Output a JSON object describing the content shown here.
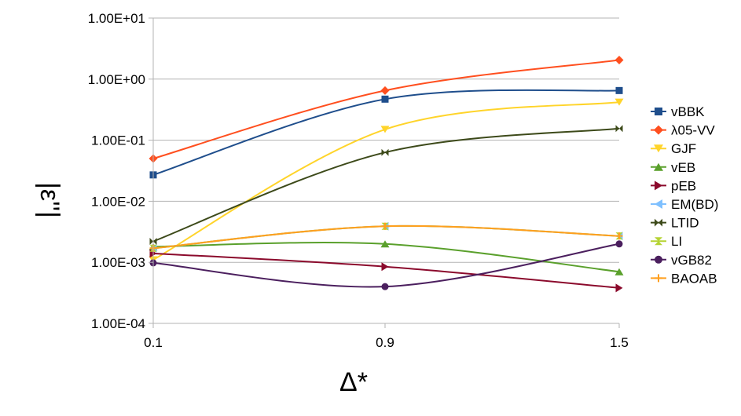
{
  "chart_data": {
    "type": "line",
    "xlabel": "Δ*",
    "ylabel": "|ε''|",
    "y_scale": "log",
    "ylim": [
      0.0001,
      10
    ],
    "y_ticks": [
      "1.00E-04",
      "1.00E-03",
      "1.00E-02",
      "1.00E-01",
      "1.00E+00",
      "1.00E+01"
    ],
    "x": [
      "0.1",
      "0.9",
      "1.5"
    ],
    "grid": "horizontal",
    "legend_position": "right",
    "series": [
      {
        "name": "vBBK",
        "color": "#1f4e8c",
        "marker": "square",
        "values": [
          0.027,
          0.47,
          0.65
        ]
      },
      {
        "name": "λ05-VV",
        "color": "#ff4f1f",
        "marker": "diamond",
        "values": [
          0.05,
          0.65,
          2.05
        ]
      },
      {
        "name": "GJF",
        "color": "#ffd42a",
        "marker": "triangle-down",
        "values": [
          0.0011,
          0.15,
          0.42
        ]
      },
      {
        "name": "vEB",
        "color": "#5aa02c",
        "marker": "triangle-up",
        "values": [
          0.0018,
          0.002,
          0.0007
        ]
      },
      {
        "name": "pEB",
        "color": "#8b0a2c",
        "marker": "triangle-right",
        "values": [
          0.0014,
          0.00085,
          0.00038
        ]
      },
      {
        "name": "EM(BD)",
        "color": "#7fc0ff",
        "marker": "triangle-left",
        "values": [
          0.0017,
          0.0039,
          0.0027
        ]
      },
      {
        "name": "LTID",
        "color": "#3d4a1a",
        "marker": "bowtie",
        "values": [
          0.0022,
          0.063,
          0.155
        ]
      },
      {
        "name": "LI",
        "color": "#b5d334",
        "marker": "hourglass",
        "values": [
          0.0017,
          0.0039,
          0.0027
        ]
      },
      {
        "name": "vGB82",
        "color": "#4b1f5e",
        "marker": "circle",
        "values": [
          0.00098,
          0.0004,
          0.002
        ]
      },
      {
        "name": "BAOAB",
        "color": "#ff9f1f",
        "marker": "plus",
        "values": [
          0.0017,
          0.0039,
          0.0027
        ]
      }
    ]
  }
}
